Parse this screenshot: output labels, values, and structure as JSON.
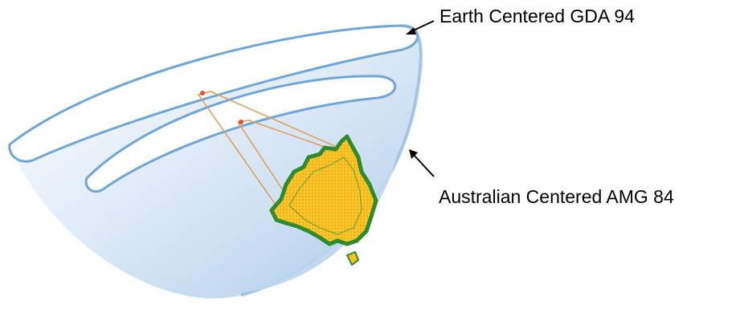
{
  "labels": {
    "earth_centered": "Earth Centered GDA 94",
    "australian_centered": "Australian Centered AMG 84"
  },
  "colors": {
    "ellipsoid_rim": "#6fa6d8",
    "ellipsoid_fill": "#cfe2f3",
    "ellipsoid_shade": "#a9c9e8",
    "australia_fill": "#f7c21c",
    "australia_outline": "#2e8b2e",
    "offset_line": "#e0a060",
    "arrow": "#000000"
  },
  "icons": {
    "earth_ellipsoid": "outer-half-ellipsoid",
    "local_ellipsoid": "inner-half-ellipsoid",
    "australia": "australia-continent-shape"
  }
}
